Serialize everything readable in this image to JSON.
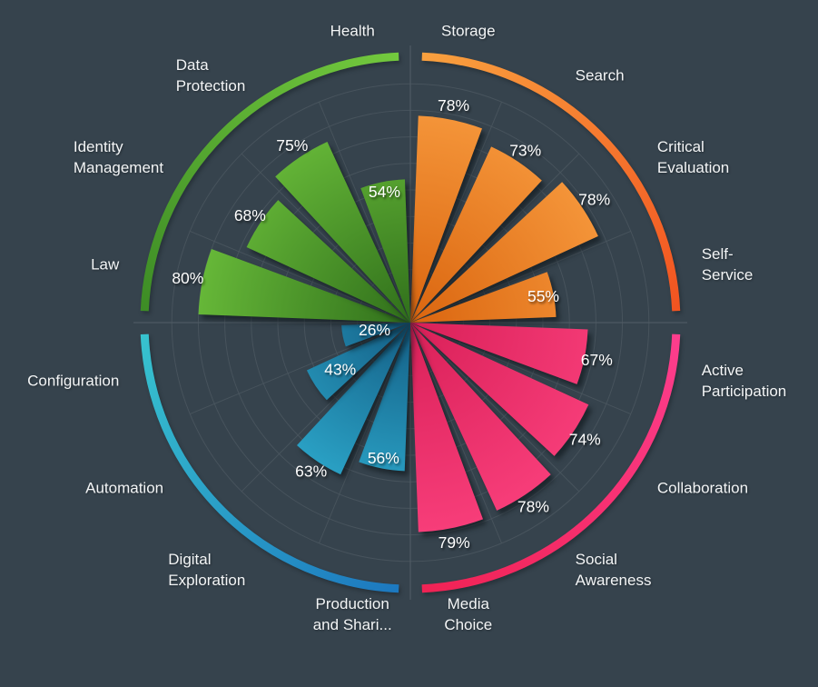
{
  "window": {
    "background": "#36434d"
  },
  "chart": {
    "grid_color": "#4a565f",
    "axis_color": "#515d66",
    "label_color": "#f3f5f6",
    "value_text_color": "#ffffff"
  },
  "chart_data": {
    "type": "bar",
    "coordinate": "polar",
    "start_angle": "top",
    "direction": "clockwise",
    "unit": "%",
    "rlim": [
      0,
      100
    ],
    "grid_rings_percent": [
      10,
      20,
      30,
      40,
      50,
      60,
      70,
      80,
      90
    ],
    "legend": "none",
    "groups": {
      "orange": {
        "wedge_inner": "#da650f",
        "wedge_outer": "#fba144",
        "ring_start": "#f9a23f",
        "ring_end": "#f25220"
      },
      "pink": {
        "wedge_inner": "#d92058",
        "wedge_outer": "#ff4582",
        "ring_start": "#fd3e8e",
        "ring_end": "#f02253"
      },
      "blue": {
        "wedge_inner": "#145e85",
        "wedge_outer": "#36c6e8",
        "ring_start": "#38c4cf",
        "ring_end": "#1c77bf"
      },
      "green": {
        "wedge_inner": "#306f1b",
        "wedge_outer": "#73c93f",
        "ring_start": "#74ca3e",
        "ring_end": "#3c8b25"
      }
    },
    "sectors": [
      {
        "label": "Storage",
        "label_lines": [
          "Storage"
        ],
        "value": 78,
        "value_label": "78%",
        "group": "orange"
      },
      {
        "label": "Search",
        "label_lines": [
          "Search"
        ],
        "value": 73,
        "value_label": "73%",
        "group": "orange"
      },
      {
        "label": "Critical Evaluation",
        "label_lines": [
          "Critical",
          "Evaluation"
        ],
        "value": 78,
        "value_label": "78%",
        "group": "orange"
      },
      {
        "label": "Self-Service",
        "label_lines": [
          "Self-",
          "Service"
        ],
        "value": 55,
        "value_label": "55%",
        "group": "orange"
      },
      {
        "label": "Active Participation",
        "label_lines": [
          "Active",
          "Participation"
        ],
        "value": 67,
        "value_label": "67%",
        "group": "pink"
      },
      {
        "label": "Collaboration",
        "label_lines": [
          "Collaboration"
        ],
        "value": 74,
        "value_label": "74%",
        "group": "pink"
      },
      {
        "label": "Social Awareness",
        "label_lines": [
          "Social",
          "Awareness"
        ],
        "value": 78,
        "value_label": "78%",
        "group": "pink"
      },
      {
        "label": "Media Choice",
        "label_lines": [
          "Media",
          "Choice"
        ],
        "value": 79,
        "value_label": "79%",
        "group": "pink"
      },
      {
        "label": "Production and Shari...",
        "label_lines": [
          "Production",
          "and Shari..."
        ],
        "value": 56,
        "value_label": "56%",
        "group": "blue"
      },
      {
        "label": "Digital Exploration",
        "label_lines": [
          "Digital",
          "Exploration"
        ],
        "value": 63,
        "value_label": "63%",
        "group": "blue"
      },
      {
        "label": "Automation",
        "label_lines": [
          "Automation"
        ],
        "value": 43,
        "value_label": "43%",
        "group": "blue"
      },
      {
        "label": "Configuration",
        "label_lines": [
          "Configuration"
        ],
        "value": 26,
        "value_label": "26%",
        "group": "blue"
      },
      {
        "label": "Law",
        "label_lines": [
          "Law"
        ],
        "value": 80,
        "value_label": "80%",
        "group": "green"
      },
      {
        "label": "Identity Management",
        "label_lines": [
          "Identity",
          "Management"
        ],
        "value": 68,
        "value_label": "68%",
        "group": "green"
      },
      {
        "label": "Data Protection",
        "label_lines": [
          "Data",
          "Protection"
        ],
        "value": 75,
        "value_label": "75%",
        "group": "green"
      },
      {
        "label": "Health",
        "label_lines": [
          "Health"
        ],
        "value": 54,
        "value_label": "54%",
        "group": "green"
      }
    ]
  }
}
